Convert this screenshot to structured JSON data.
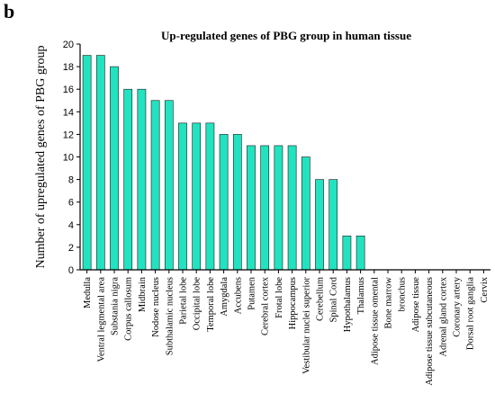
{
  "panel_label": "b",
  "colors": {
    "bar_fill": "#22e3c0",
    "bar_stroke": "#1a1a1a",
    "axis": "#000000"
  },
  "chart_data": {
    "type": "bar",
    "title": "Up-regulated genes of PBG group in human tissue",
    "xlabel": "",
    "ylabel": "Number of  upregulated genes of PBG group",
    "ylim": [
      0,
      20
    ],
    "yticks": [
      0,
      2,
      4,
      6,
      8,
      10,
      12,
      14,
      16,
      18,
      20
    ],
    "grid": false,
    "categories": [
      "Medulla",
      "Ventral legmental area",
      "Substania nigra",
      "Corpus callosum",
      "Midbrain",
      "Nodose nucleus",
      "Subthalamic nucleus",
      "Parietal lobe",
      "Occipital lobe",
      "Temporal lobe",
      "Amygdala",
      "Accubens",
      "Putamen",
      "Cerebral cortex",
      "Frotal lobe",
      "Hippocampus",
      "Vestibular nuclei superior",
      "Cerebellum",
      "Spinal Cord",
      "Hypothalamus",
      "Thalamus",
      "Adipose tissue omental",
      "Bone marrow",
      "bronchus",
      "Adipose tissue",
      "Adipose tissue subcutaneous",
      "Adrenal gland cortex",
      "Coronary artery",
      "Dorsal root ganglia",
      "Cervix"
    ],
    "values": [
      19,
      19,
      18,
      16,
      16,
      15,
      15,
      13,
      13,
      13,
      12,
      12,
      11,
      11,
      11,
      11,
      10,
      8,
      8,
      3,
      3,
      0,
      0,
      0,
      0,
      0,
      0,
      0,
      0,
      0
    ]
  }
}
